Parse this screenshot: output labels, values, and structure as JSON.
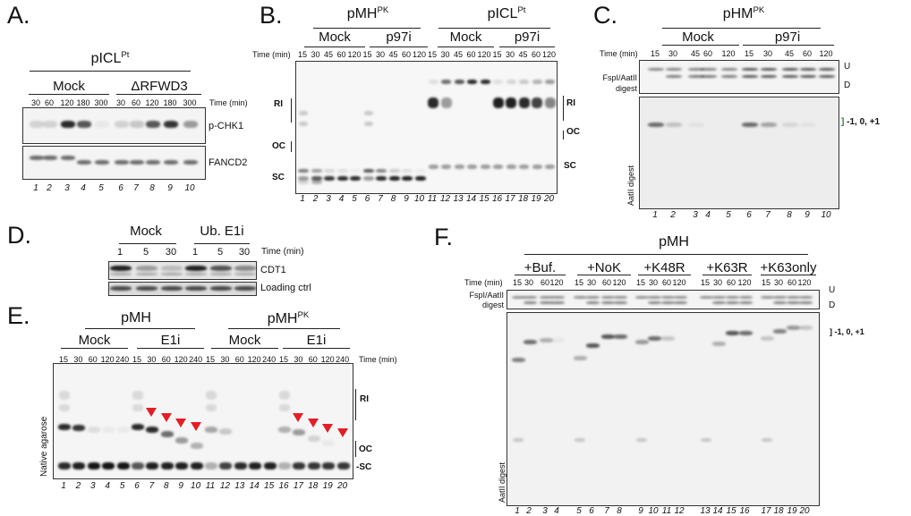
{
  "panels": {
    "A": {
      "label": "A.",
      "construct": "pICL",
      "construct_sup": "Pt",
      "groups": [
        "Mock",
        "ΔRFWD3"
      ],
      "times": [
        "30",
        "60",
        "120",
        "180",
        "300",
        "30",
        "60",
        "120",
        "180",
        "300"
      ],
      "time_label": "Time (min)",
      "blots": [
        "p-CHK1",
        "FANCD2"
      ],
      "lanes": [
        "1",
        "2",
        "3",
        "4",
        "5",
        "6",
        "7",
        "8",
        "9",
        "10"
      ]
    },
    "B": {
      "label": "B.",
      "constructs": [
        {
          "name": "pMH",
          "sup": "PK"
        },
        {
          "name": "pICL",
          "sup": "Pt"
        }
      ],
      "groups": [
        "Mock",
        "p97i",
        "Mock",
        "p97i"
      ],
      "time_label": "Time (min)",
      "times": [
        "15",
        "30",
        "45",
        "60",
        "120",
        "15",
        "30",
        "45",
        "60",
        "120",
        "15",
        "30",
        "45",
        "60",
        "120",
        "15",
        "30",
        "45",
        "60",
        "120"
      ],
      "left_markers": [
        "RI",
        "OC",
        "SC"
      ],
      "right_markers": [
        "RI",
        "OC",
        "SC"
      ],
      "lanes": [
        "1",
        "2",
        "3",
        "4",
        "5",
        "6",
        "7",
        "8",
        "9",
        "10",
        "11",
        "12",
        "13",
        "14",
        "15",
        "16",
        "17",
        "18",
        "19",
        "20"
      ]
    },
    "C": {
      "label": "C.",
      "construct": "pHM",
      "construct_sup": "PK",
      "groups": [
        "Mock",
        "p97i"
      ],
      "time_label": "Time (min)",
      "times": [
        "15",
        "30",
        "45",
        "60",
        "120",
        "15",
        "30",
        "45",
        "60",
        "120"
      ],
      "top_gel_label": [
        "FspI/AatII",
        "digest"
      ],
      "bottom_gel_label": "AatII digest",
      "markers": [
        "U",
        "D"
      ],
      "bracket_label": "-1, 0, +1",
      "bracket_color": "#2e7d32",
      "lanes": [
        "1",
        "2",
        "3",
        "4",
        "5",
        "6",
        "7",
        "8",
        "9",
        "10"
      ]
    },
    "D": {
      "label": "D.",
      "groups": [
        "Mock",
        "Ub. E1i"
      ],
      "times": [
        "1",
        "5",
        "30",
        "1",
        "5",
        "30"
      ],
      "time_label": "Time (min)",
      "blots": [
        "CDT1",
        "Loading ctrl"
      ]
    },
    "E": {
      "label": "E.",
      "constructs": [
        {
          "name": "pMH",
          "sup": ""
        },
        {
          "name": "pMH",
          "sup": "PK"
        }
      ],
      "groups": [
        "Mock",
        "E1i",
        "Mock",
        "E1i"
      ],
      "times": [
        "15",
        "30",
        "60",
        "120",
        "240",
        "15",
        "30",
        "60",
        "120",
        "240",
        "15",
        "30",
        "60",
        "120",
        "240",
        "15",
        "30",
        "60",
        "120",
        "240"
      ],
      "time_label": "Time (min)",
      "side_label": "Native agarose",
      "markers": [
        "RI",
        "OC",
        "SC"
      ],
      "arrow_color": "#e41e26",
      "arrow_lanes": [
        7,
        8,
        9,
        10,
        17,
        18,
        19,
        20
      ],
      "lanes": [
        "1",
        "2",
        "3",
        "4",
        "5",
        "6",
        "7",
        "8",
        "9",
        "10",
        "11",
        "12",
        "13",
        "14",
        "15",
        "16",
        "17",
        "18",
        "19",
        "20"
      ]
    },
    "F": {
      "label": "F.",
      "construct": "pMH",
      "groups": [
        "+Buf.",
        "+NoK",
        "+K48R",
        "+K63R",
        "+K63only"
      ],
      "time_label": "Time (min)",
      "times": [
        "15",
        "30",
        "60",
        "120",
        "15",
        "30",
        "60",
        "120",
        "15",
        "30",
        "60",
        "120",
        "15",
        "30",
        "60",
        "120",
        "15",
        "30",
        "60",
        "120"
      ],
      "top_gel_label": [
        "FspI/AatII",
        "digest"
      ],
      "bottom_gel_label": "AatII digest",
      "markers": [
        "U",
        "D"
      ],
      "bracket_label": "-1, 0, +1",
      "lanes": [
        "1",
        "2",
        "3",
        "4",
        "5",
        "6",
        "7",
        "8",
        "9",
        "10",
        "11",
        "12",
        "13",
        "14",
        "15",
        "16",
        "17",
        "18",
        "19",
        "20"
      ]
    }
  }
}
